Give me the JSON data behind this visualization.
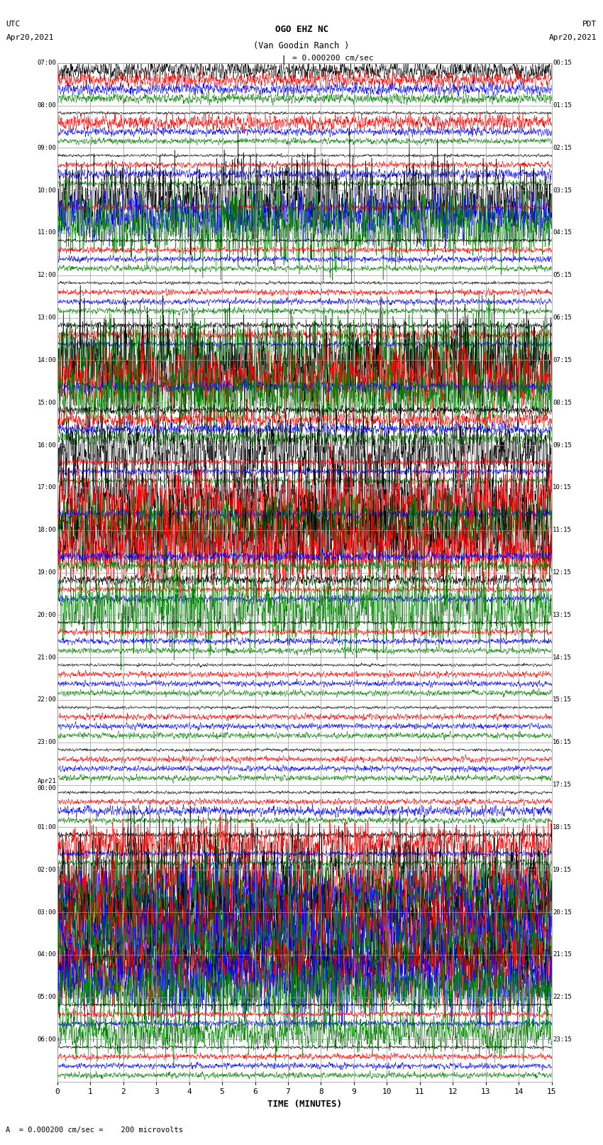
{
  "title_line1": "OGO EHZ NC",
  "title_line2": "(Van Goodin Ranch )",
  "scale_label": "= 0.000200 cm/sec",
  "utc_label": "UTC",
  "utc_date": "Apr20,2021",
  "pdt_label": "PDT",
  "pdt_date": "Apr20,2021",
  "bottom_label": "A  = 0.000200 cm/sec =    200 microvolts",
  "xlabel": "TIME (MINUTES)",
  "fig_width": 8.5,
  "fig_height": 16.13,
  "dpi": 100,
  "xlim": [
    0,
    15
  ],
  "xticks": [
    0,
    1,
    2,
    3,
    4,
    5,
    6,
    7,
    8,
    9,
    10,
    11,
    12,
    13,
    14,
    15
  ],
  "background_color": "white",
  "grid_color": "#999999",
  "num_rows": 24,
  "traces_per_row": 4,
  "colors": [
    "black",
    "red",
    "blue",
    "green"
  ],
  "row_labels_utc": [
    "07:00",
    "08:00",
    "09:00",
    "10:00",
    "11:00",
    "12:00",
    "13:00",
    "14:00",
    "15:00",
    "16:00",
    "17:00",
    "18:00",
    "19:00",
    "20:00",
    "21:00",
    "22:00",
    "23:00",
    "Apr21\n00:00",
    "01:00",
    "02:00",
    "03:00",
    "04:00",
    "05:00",
    "06:00"
  ],
  "row_labels_pdt": [
    "00:15",
    "01:15",
    "02:15",
    "03:15",
    "04:15",
    "05:15",
    "06:15",
    "07:15",
    "08:15",
    "09:15",
    "10:15",
    "11:15",
    "12:15",
    "13:15",
    "14:15",
    "15:15",
    "16:15",
    "17:15",
    "18:15",
    "19:15",
    "20:15",
    "21:15",
    "22:15",
    "23:15"
  ],
  "row_activity": {
    "0": {
      "0": 1.0,
      "1": 0.8,
      "2": 0.6,
      "3": 0.5
    },
    "1": {
      "0": 0.15,
      "1": 0.8,
      "2": 0.4,
      "3": 0.3
    },
    "2": {
      "0": 0.15,
      "1": 0.3,
      "2": 0.5,
      "3": 0.3
    },
    "3": {
      "0": 3.5,
      "1": 0.3,
      "2": 2.5,
      "3": 3.5
    },
    "4": {
      "0": 0.15,
      "1": 0.3,
      "2": 0.3,
      "3": 0.3
    },
    "5": {
      "0": 0.15,
      "1": 0.3,
      "2": 0.3,
      "3": 0.3
    },
    "6": {
      "0": 0.3,
      "1": 0.5,
      "2": 0.3,
      "3": 4.0
    },
    "7": {
      "0": 5.0,
      "1": 3.0,
      "2": 0.6,
      "3": 3.0
    },
    "8": {
      "0": 0.4,
      "1": 0.8,
      "2": 0.6,
      "3": 0.8
    },
    "9": {
      "0": 3.5,
      "1": 0.3,
      "2": 0.3,
      "3": 0.3
    },
    "10": {
      "0": 3.5,
      "1": 4.0,
      "2": 0.5,
      "3": 2.5
    },
    "11": {
      "0": 4.0,
      "1": 4.0,
      "2": 0.5,
      "3": 0.5
    },
    "12": {
      "0": 0.5,
      "1": 0.3,
      "2": 0.4,
      "3": 3.5
    },
    "13": {
      "0": 0.15,
      "1": 0.3,
      "2": 0.3,
      "3": 0.3
    },
    "14": {
      "0": 0.15,
      "1": 0.3,
      "2": 0.3,
      "3": 0.3
    },
    "15": {
      "0": 0.15,
      "1": 0.3,
      "2": 0.3,
      "3": 0.3
    },
    "16": {
      "0": 0.15,
      "1": 0.3,
      "2": 0.3,
      "3": 0.3
    },
    "17": {
      "0": 0.15,
      "1": 0.3,
      "2": 0.5,
      "3": 0.3
    },
    "18": {
      "0": 0.3,
      "1": 2.0,
      "2": 0.3,
      "3": 0.3
    },
    "19": {
      "0": 5.0,
      "1": 2.5,
      "2": 2.5,
      "3": 4.5
    },
    "20": {
      "0": 4.0,
      "1": 4.0,
      "2": 4.0,
      "3": 4.0
    },
    "21": {
      "0": 2.5,
      "1": 3.5,
      "2": 3.5,
      "3": 3.0
    },
    "22": {
      "0": 0.15,
      "1": 0.3,
      "2": 0.3,
      "3": 2.0
    },
    "23": {
      "0": 0.15,
      "1": 0.3,
      "2": 0.3,
      "3": 0.3
    }
  }
}
